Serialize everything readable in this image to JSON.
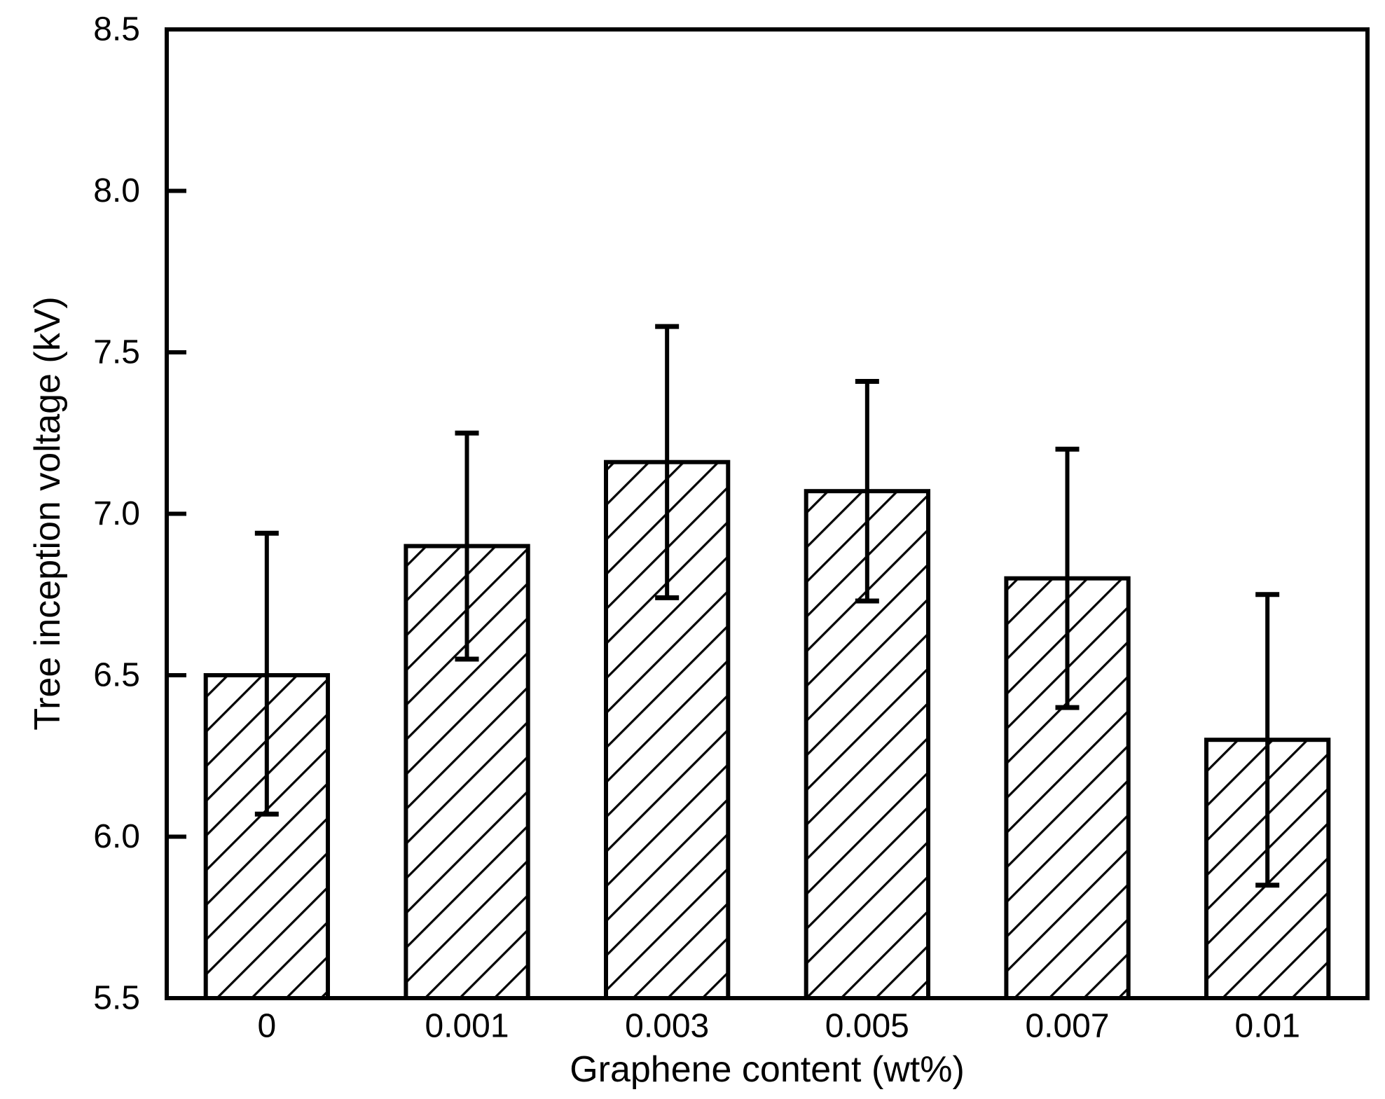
{
  "figure": {
    "background": "#ffffff",
    "ink_color": "#000000"
  },
  "chart_data": {
    "type": "bar",
    "title": "",
    "xlabel": "Graphene content  (wt%)",
    "ylabel": "Tree inception voltage (kV)",
    "categories": [
      "0",
      "0.001",
      "0.003",
      "0.005",
      "0.007",
      "0.01"
    ],
    "values": [
      6.5,
      6.9,
      7.16,
      7.07,
      6.8,
      6.3
    ],
    "error_upper_cap": [
      6.94,
      7.25,
      7.58,
      7.41,
      7.2,
      6.75
    ],
    "error_lower_cap": [
      6.07,
      6.55,
      6.74,
      6.73,
      6.4,
      5.85
    ],
    "ylim": [
      5.5,
      8.5
    ],
    "ytick_step": 0.5,
    "yticks": [
      "5.5",
      "6.0",
      "6.5",
      "7.0",
      "7.5",
      "8.0",
      "8.5"
    ],
    "grid": false,
    "legend": null,
    "bar_style": {
      "fill": "none",
      "hatch": "diagonal-forward",
      "stroke": "#000000"
    }
  }
}
